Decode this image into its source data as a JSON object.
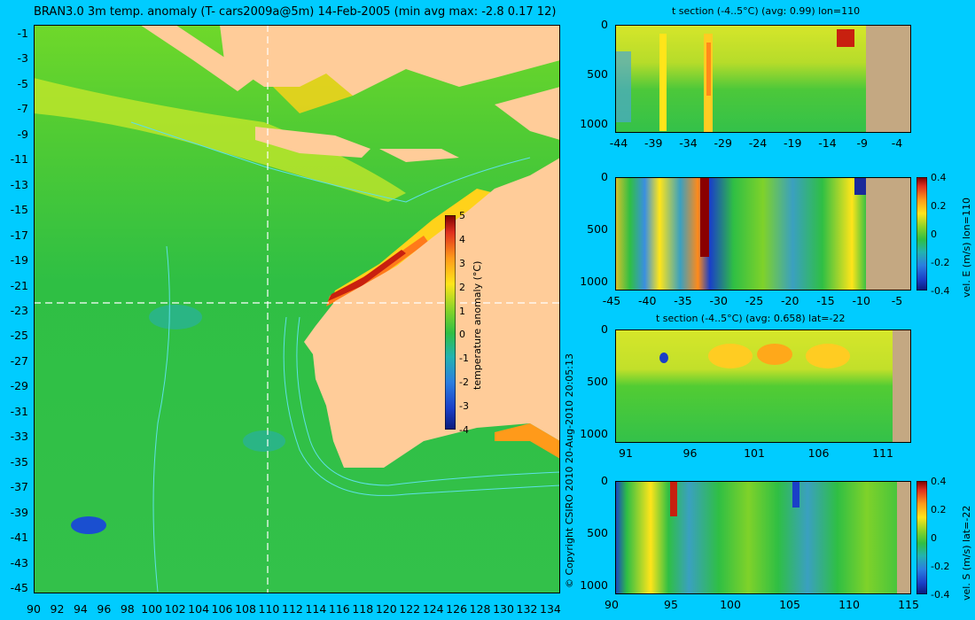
{
  "map": {
    "title": "BRAN3.0 3m temp. anomaly (T- cars2009a@5m) 14-Feb-2005 (min avg max: -2.8 0.17 12)",
    "lat_labels": [
      "-1",
      "-3",
      "-5",
      "-7",
      "-9",
      "-11",
      "-13",
      "-15",
      "-17",
      "-19",
      "-21",
      "-23",
      "-25",
      "-27",
      "-29",
      "-31",
      "-33",
      "-35",
      "-37",
      "-39",
      "-41",
      "-43",
      "-45"
    ],
    "lon_labels": [
      "90",
      "92",
      "94",
      "96",
      "98",
      "100",
      "102",
      "104",
      "106",
      "108",
      "110",
      "112",
      "114",
      "116",
      "118",
      "120",
      "122",
      "124",
      "126",
      "128",
      "130",
      "132",
      "134"
    ],
    "crosshair": {
      "lon": 110,
      "lat": -22
    },
    "colors": {
      "land": "#ffcc99",
      "ocean": "#2fbf44",
      "contour": "#5ee0e6",
      "background": "#00ccff"
    }
  },
  "colorbar": {
    "label": "temperature anomaly (°C)",
    "ticks": [
      "5",
      "4",
      "3",
      "2",
      "1",
      "0",
      "-1",
      "-2",
      "-3",
      "-4"
    ],
    "min": -4,
    "max": 5
  },
  "copyright": "© Copyright CSIRO 2010   20-Aug-2010 20:05:13",
  "panels": [
    {
      "title": "t section (-4..5°C) (avg: 0.99) lon=110",
      "x_ticks": [
        "-44",
        "-39",
        "-34",
        "-29",
        "-24",
        "-19",
        "-14",
        "-9",
        "-4"
      ],
      "y_ticks": [
        "0",
        "500",
        "1000"
      ]
    },
    {
      "title": "",
      "x_ticks": [
        "-45",
        "-40",
        "-35",
        "-30",
        "-25",
        "-20",
        "-15",
        "-10",
        "-5"
      ],
      "y_ticks": [
        "0",
        "500",
        "1000"
      ],
      "colorbar_ticks": [
        "0.4",
        "0.2",
        "0",
        "-0.2",
        "-0.4"
      ],
      "colorbar_label": "vel. E (m/s) lon=110"
    },
    {
      "title": "t section (-4..5°C) (avg: 0.658) lat=-22",
      "x_ticks": [
        "91",
        "96",
        "101",
        "106",
        "111"
      ],
      "y_ticks": [
        "0",
        "500",
        "1000"
      ]
    },
    {
      "title": "",
      "x_ticks": [
        "90",
        "95",
        "100",
        "105",
        "110",
        "115"
      ],
      "y_ticks": [
        "0",
        "500",
        "1000"
      ],
      "colorbar_ticks": [
        "0.4",
        "0.2",
        "0",
        "-0.2",
        "-0.4"
      ],
      "colorbar_label": "vel. S (m/s) lat=-22"
    }
  ]
}
